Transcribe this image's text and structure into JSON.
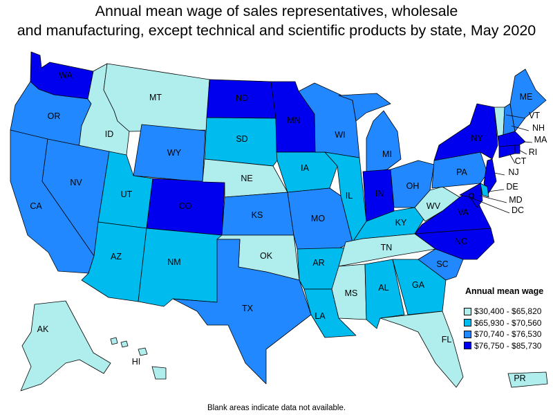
{
  "title_line1": "Annual mean wage of sales representatives, wholesale",
  "title_line2": "and manufacturing, except technical and scientific products by state, May 2020",
  "legend": {
    "title": "Annual mean wage",
    "items": [
      {
        "label": "$30,400 - $65,820",
        "color": "#b0eeee"
      },
      {
        "label": "$65,930 - $70,560",
        "color": "#00bbee"
      },
      {
        "label": "$70,740 - $76,530",
        "color": "#2288ff"
      },
      {
        "label": "$76,750 - $85,730",
        "color": "#0000ee"
      }
    ]
  },
  "footnote": "Blank areas indicate data not available.",
  "states": {
    "WA": 4,
    "OR": 3,
    "CA": 3,
    "ID": 1,
    "NV": 3,
    "MT": 1,
    "WY": 3,
    "UT": 2,
    "AZ": 2,
    "CO": 4,
    "NM": 2,
    "ND": 4,
    "SD": 2,
    "NE": 1,
    "KS": 3,
    "OK": 1,
    "TX": 3,
    "MN": 4,
    "IA": 2,
    "MO": 3,
    "AR": 2,
    "LA": 2,
    "WI": 3,
    "IL": 2,
    "MI": 3,
    "IN": 4,
    "OH": 3,
    "KY": 2,
    "TN": 1,
    "MS": 1,
    "AL": 2,
    "GA": 2,
    "FL": 1,
    "SC": 3,
    "NC": 4,
    "VA": 4,
    "WV": 1,
    "PA": 3,
    "NY": 4,
    "VT": 1,
    "NH": 3,
    "ME": 3,
    "MA": 4,
    "RI": 4,
    "CT": 4,
    "NJ": 4,
    "DE": 2,
    "MD": 4,
    "DC": 4,
    "AK": 1,
    "HI": 1,
    "PR": 1
  }
}
